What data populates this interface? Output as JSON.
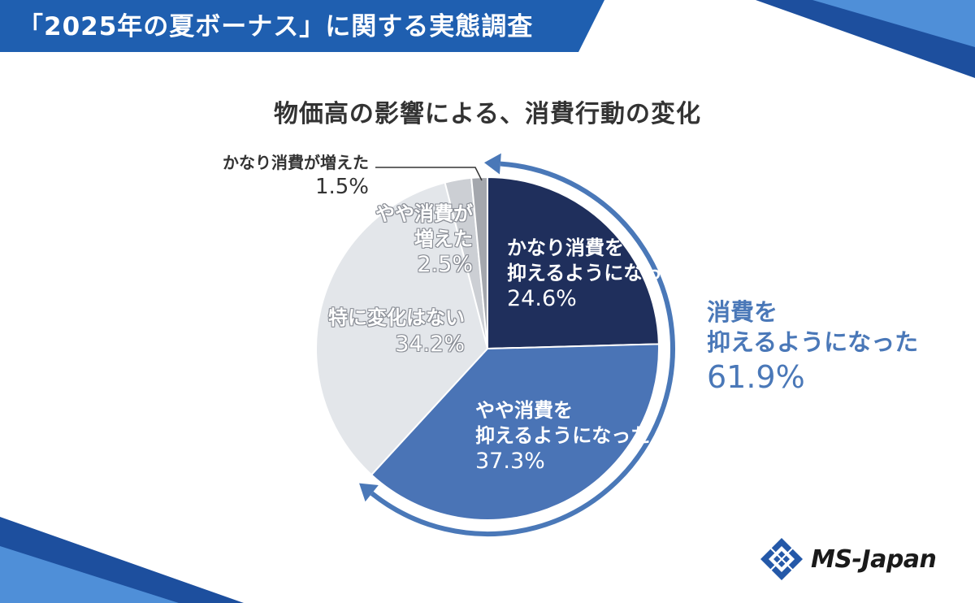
{
  "header": {
    "banner_title": "「2025年の夏ボーナス」に関する実態調査"
  },
  "chart_data": {
    "type": "pie",
    "title": "物価高の影響による、消費行動の変化",
    "start_angle_deg": 0,
    "direction": "clockwise",
    "slices": [
      {
        "label_lines": [
          "かなり消費を",
          "抑えるようになった"
        ],
        "value": 24.6,
        "pct_text": "24.6%",
        "color": "#1f2f5c"
      },
      {
        "label_lines": [
          "やや消費を",
          "抑えるようになった"
        ],
        "value": 37.3,
        "pct_text": "37.3%",
        "color": "#4a74b6"
      },
      {
        "label_lines": [
          "特に変化はない"
        ],
        "value": 34.2,
        "pct_text": "34.2%",
        "color": "#e3e6ea"
      },
      {
        "label_lines": [
          "やや消費が",
          "増えた"
        ],
        "value": 2.5,
        "pct_text": "2.5%",
        "color": "#cccfd4"
      },
      {
        "label_lines": [
          "かなり消費が増えた"
        ],
        "value": 1.5,
        "pct_text": "1.5%",
        "color": "#a4a7ad"
      }
    ],
    "grouped_annotation": {
      "label_lines": [
        "消費を",
        "抑えるようになった"
      ],
      "pct_text": "61.9%",
      "color": "#4a78b8"
    }
  },
  "colors": {
    "banner": "#1f5fb0",
    "accent_blue": "#4a78b8",
    "logo_blue": "#2458a8"
  },
  "logo": {
    "text": "MS-Japan",
    "icon": "ms-japan-diamond-logo"
  }
}
